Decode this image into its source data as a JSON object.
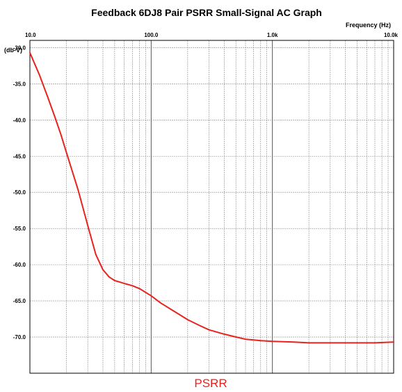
{
  "chart_data": {
    "type": "line",
    "title": "Feedback 6DJ8 Pair PSRR Small-Signal AC Graph",
    "xlabel": "Frequency  (Hz)",
    "ylabel": "(db-V)",
    "x_scale": "log",
    "xlim": [
      10,
      10000
    ],
    "ylim": [
      -75,
      -29
    ],
    "grid": true,
    "x_tick_labels": [
      "10.0",
      "100.0",
      "1.0k",
      "10.0k"
    ],
    "x_ticks": [
      10,
      100,
      1000,
      10000
    ],
    "y_tick_labels": [
      "-30.0",
      "-35.0",
      "-40.0",
      "-45.0",
      "-50.0",
      "-55.0",
      "-60.0",
      "-65.0",
      "-70.0"
    ],
    "y_ticks": [
      -30,
      -35,
      -40,
      -45,
      -50,
      -55,
      -60,
      -65,
      -70
    ],
    "series": [
      {
        "name": "PSRR",
        "color": "#e8221c",
        "x": [
          10,
          12,
          14,
          16,
          18,
          20,
          25,
          30,
          35,
          40,
          45,
          50,
          55,
          60,
          70,
          80,
          100,
          120,
          150,
          200,
          250,
          300,
          400,
          500,
          600,
          700,
          800,
          1000,
          1500,
          2000,
          3000,
          5000,
          7000,
          10000
        ],
        "y": [
          -30.7,
          -33.8,
          -36.8,
          -39.5,
          -42.0,
          -44.5,
          -49.7,
          -54.6,
          -58.6,
          -60.7,
          -61.7,
          -62.2,
          -62.4,
          -62.6,
          -62.9,
          -63.3,
          -64.3,
          -65.3,
          -66.3,
          -67.6,
          -68.4,
          -69.0,
          -69.6,
          -70.0,
          -70.3,
          -70.4,
          -70.5,
          -70.6,
          -70.7,
          -70.8,
          -70.8,
          -70.8,
          -70.8,
          -70.7
        ]
      }
    ]
  }
}
